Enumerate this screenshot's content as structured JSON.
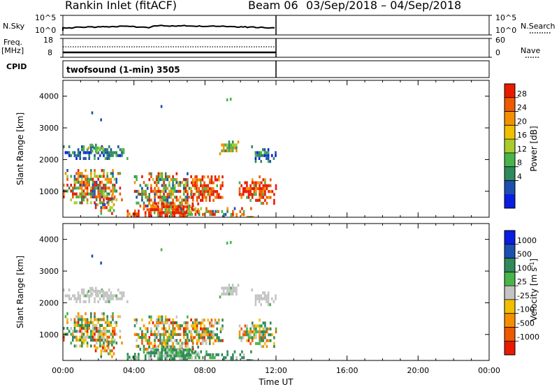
{
  "header": {
    "station": "Rankin Inlet (fitACF)",
    "beam": "Beam 06",
    "date_range": "03/Sep/2018 – 04/Sep/2018"
  },
  "side_labels": {
    "nsky": "N.Sky",
    "freq": "Freq.",
    "freq_unit": "[MHz]",
    "cpid": "CPID",
    "nsearch": "N.Search",
    "nave": "Nave",
    "nsky_ticks": [
      "10^5",
      "10^0"
    ],
    "nsearch_ticks": [
      "10^5",
      "10^0"
    ],
    "freq_ticks": [
      "18",
      "8"
    ],
    "nave_ticks": [
      "60",
      "0"
    ]
  },
  "cpid_text": "twofsound (1-min) 3505",
  "colors": {
    "power_scale": [
      "#0a1de0",
      "#1c4fb0",
      "#2e8a5a",
      "#49b449",
      "#a8cc2c",
      "#f0c000",
      "#f49000",
      "#ee5a00",
      "#e81a00"
    ],
    "velocity_scale": [
      "#0a1de0",
      "#1c4fb0",
      "#2e8a5a",
      "#49b449",
      "#c4c4c4",
      "#f0c000",
      "#f49000",
      "#ee5a00",
      "#e81a00"
    ]
  },
  "chart_data": [
    {
      "type": "heatmap",
      "name": "power",
      "xlabel": "",
      "ylabel": "Slant Range [km]",
      "xlim_hours": [
        0,
        24
      ],
      "ylim": [
        180,
        4500
      ],
      "yticks": [
        "1000",
        "2000",
        "3000",
        "4000"
      ],
      "colorbar": {
        "label": "Power [dB]",
        "ticks": [
          "4",
          "8",
          "12",
          "16",
          "20",
          "24",
          "28"
        ],
        "range": [
          0,
          32
        ]
      },
      "data_end_hours": 12
    },
    {
      "type": "heatmap",
      "name": "velocity",
      "xlabel": "Time UT",
      "ylabel": "Slant Range [km]",
      "xlim_hours": [
        0,
        24
      ],
      "ylim": [
        180,
        4500
      ],
      "yticks": [
        "1000",
        "2000",
        "3000",
        "4000"
      ],
      "xticks": [
        "00:00",
        "04:00",
        "08:00",
        "12:00",
        "16:00",
        "20:00",
        "00:00"
      ],
      "colorbar": {
        "label": "Velocity [m s^-1]",
        "ticks": [
          "1000",
          "500",
          "100",
          "25",
          "-25",
          "-100",
          "-500",
          "-1000"
        ]
      },
      "data_end_hours": 12
    }
  ]
}
